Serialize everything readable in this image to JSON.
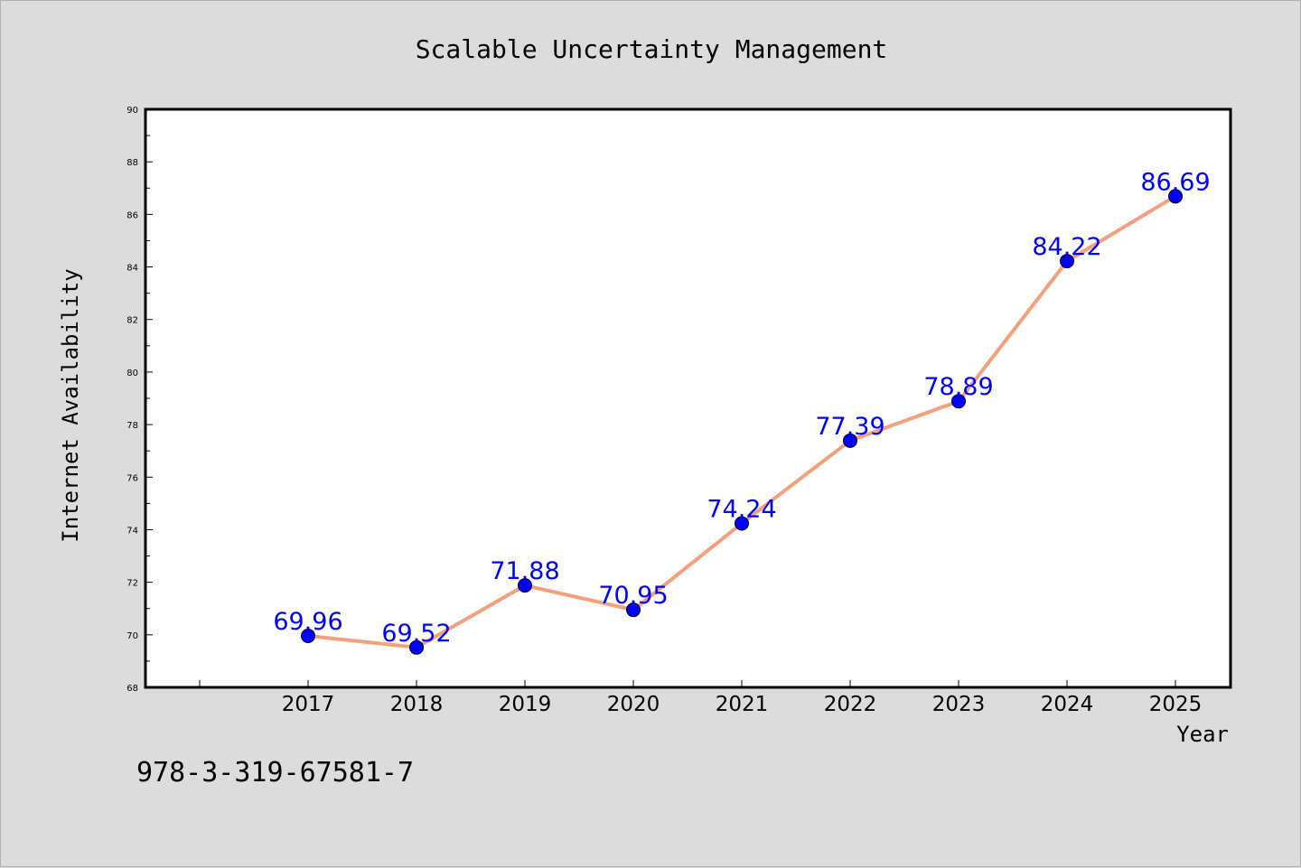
{
  "chart_data": {
    "type": "line",
    "title": "Scalable Uncertainty Management",
    "xlabel": "Year",
    "ylabel": "Internet Availability",
    "categories": [
      "2017",
      "2018",
      "2019",
      "2020",
      "2021",
      "2022",
      "2023",
      "2024",
      "2025"
    ],
    "series": [
      {
        "values": [
          69.96,
          69.52,
          71.88,
          70.95,
          74.24,
          77.39,
          78.89,
          84.22,
          86.69
        ],
        "labels": [
          "69.96",
          "69.52",
          "71.88",
          "70.95",
          "74.24",
          "77.39",
          "78.89",
          "84.22",
          "86.69"
        ],
        "line_color": "#f4a07c",
        "marker_color": "#0000ff"
      }
    ],
    "ylim": [
      68,
      90
    ],
    "yticks": [
      "68",
      "70",
      "72",
      "74",
      "76",
      "78",
      "80",
      "82",
      "84",
      "86",
      "88",
      "90"
    ],
    "grid": false,
    "legend": "none"
  },
  "annotation": "978-3-319-67581-7",
  "colors": {
    "background": "#dcdcdc",
    "plot_background": "#ffffff",
    "line": "#f4a07c",
    "marker": "#0000ff",
    "data_label": "#0000ff",
    "text": "#000000"
  }
}
